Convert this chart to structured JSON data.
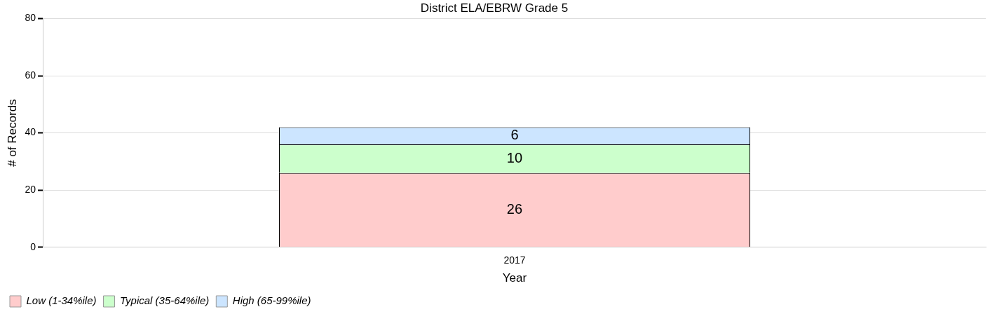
{
  "chart_data": {
    "type": "bar",
    "title": "District ELA/EBRW Grade 5",
    "xlabel": "Year",
    "ylabel": "# of Records",
    "categories": [
      "2017"
    ],
    "stacked": true,
    "series": [
      {
        "name": "Low (1-34%ile)",
        "color": "#ffcccc",
        "values": [
          26
        ]
      },
      {
        "name": "Typical (35-64%ile)",
        "color": "#ccffcc",
        "values": [
          10
        ]
      },
      {
        "name": "High (65-99%ile)",
        "color": "#cce5ff",
        "values": [
          6
        ]
      }
    ],
    "ylim": [
      0,
      80
    ],
    "yticks": [
      0,
      20,
      40,
      60,
      80
    ],
    "grid": "y",
    "legend": "bottom left",
    "data_labels": true
  }
}
